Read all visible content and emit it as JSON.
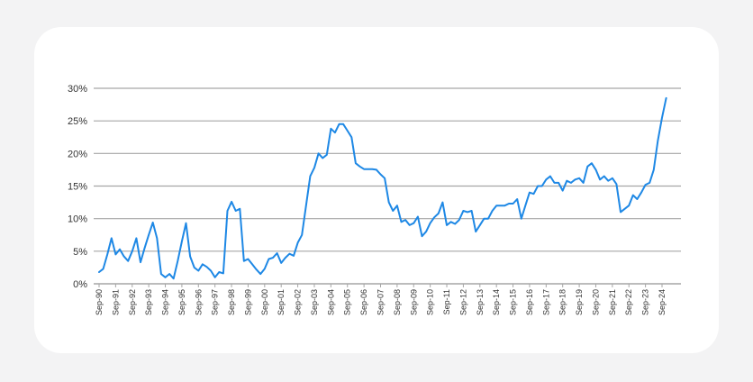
{
  "chart_data": {
    "type": "line",
    "title": "",
    "xlabel": "",
    "ylabel": "",
    "ylim": [
      0,
      30
    ],
    "y_ticks": [
      "0%",
      "5%",
      "10%",
      "15%",
      "20%",
      "25%",
      "30%"
    ],
    "x_ticks": [
      "Sep-90",
      "Sep-91",
      "Sep-92",
      "Sep-93",
      "Sep-94",
      "Sep-95",
      "Sep-96",
      "Sep-97",
      "Sep-98",
      "Sep-99",
      "Sep-00",
      "Sep-01",
      "Sep-02",
      "Sep-03",
      "Sep-04",
      "Sep-05",
      "Sep-06",
      "Sep-07",
      "Sep-08",
      "Sep-09",
      "Sep-10",
      "Sep-11",
      "Sep-12",
      "Sep-13",
      "Sep-14",
      "Sep-15",
      "Sep-16",
      "Sep-17",
      "Sep-18",
      "Sep-19",
      "Sep-20",
      "Sep-21",
      "Sep-22",
      "Sep-23",
      "Sep-24"
    ],
    "grid": true,
    "line_color": "#1e88e5",
    "grid_color": "#a6a6a6",
    "series": [
      {
        "points": [
          [
            1990.0,
            1.8
          ],
          [
            1990.25,
            2.3
          ],
          [
            1990.5,
            4.5
          ],
          [
            1990.75,
            7.0
          ],
          [
            1991.0,
            4.5
          ],
          [
            1991.25,
            5.3
          ],
          [
            1991.5,
            4.2
          ],
          [
            1991.75,
            3.5
          ],
          [
            1992.0,
            5.0
          ],
          [
            1992.25,
            7.0
          ],
          [
            1992.5,
            3.3
          ],
          [
            1992.75,
            5.5
          ],
          [
            1993.0,
            7.5
          ],
          [
            1993.25,
            9.4
          ],
          [
            1993.5,
            7.0
          ],
          [
            1993.75,
            1.5
          ],
          [
            1994.0,
            1.0
          ],
          [
            1994.25,
            1.5
          ],
          [
            1994.5,
            0.8
          ],
          [
            1994.75,
            3.5
          ],
          [
            1995.0,
            6.5
          ],
          [
            1995.25,
            9.3
          ],
          [
            1995.5,
            4.2
          ],
          [
            1995.75,
            2.5
          ],
          [
            1996.0,
            2.0
          ],
          [
            1996.25,
            3.0
          ],
          [
            1996.5,
            2.6
          ],
          [
            1996.75,
            2.0
          ],
          [
            1997.0,
            1.0
          ],
          [
            1997.25,
            1.8
          ],
          [
            1997.5,
            1.6
          ],
          [
            1997.75,
            11.2
          ],
          [
            1998.0,
            12.6
          ],
          [
            1998.25,
            11.2
          ],
          [
            1998.5,
            11.5
          ],
          [
            1998.75,
            3.5
          ],
          [
            1999.0,
            3.8
          ],
          [
            1999.25,
            3.0
          ],
          [
            1999.5,
            2.2
          ],
          [
            1999.75,
            1.5
          ],
          [
            2000.0,
            2.3
          ],
          [
            2000.25,
            3.8
          ],
          [
            2000.5,
            4.0
          ],
          [
            2000.75,
            4.7
          ],
          [
            2001.0,
            3.2
          ],
          [
            2001.25,
            4.0
          ],
          [
            2001.5,
            4.6
          ],
          [
            2001.75,
            4.3
          ],
          [
            2002.0,
            6.3
          ],
          [
            2002.25,
            7.5
          ],
          [
            2002.5,
            12.0
          ],
          [
            2002.75,
            16.5
          ],
          [
            2003.0,
            17.8
          ],
          [
            2003.25,
            20.0
          ],
          [
            2003.5,
            19.3
          ],
          [
            2003.75,
            19.8
          ],
          [
            2004.0,
            23.8
          ],
          [
            2004.25,
            23.2
          ],
          [
            2004.5,
            24.5
          ],
          [
            2004.75,
            24.5
          ],
          [
            2005.0,
            23.5
          ],
          [
            2005.25,
            22.5
          ],
          [
            2005.5,
            18.5
          ],
          [
            2005.75,
            18.0
          ],
          [
            2006.0,
            17.6
          ],
          [
            2006.25,
            17.6
          ],
          [
            2006.5,
            17.6
          ],
          [
            2006.75,
            17.5
          ],
          [
            2007.0,
            16.8
          ],
          [
            2007.25,
            16.2
          ],
          [
            2007.5,
            12.5
          ],
          [
            2007.75,
            11.2
          ],
          [
            2008.0,
            12.0
          ],
          [
            2008.25,
            9.5
          ],
          [
            2008.5,
            9.8
          ],
          [
            2008.75,
            9.0
          ],
          [
            2009.0,
            9.3
          ],
          [
            2009.25,
            10.3
          ],
          [
            2009.5,
            7.3
          ],
          [
            2009.75,
            8.0
          ],
          [
            2010.0,
            9.3
          ],
          [
            2010.25,
            10.2
          ],
          [
            2010.5,
            10.8
          ],
          [
            2010.75,
            12.5
          ],
          [
            2011.0,
            9.0
          ],
          [
            2011.25,
            9.5
          ],
          [
            2011.5,
            9.2
          ],
          [
            2011.75,
            9.8
          ],
          [
            2012.0,
            11.2
          ],
          [
            2012.25,
            11.0
          ],
          [
            2012.5,
            11.2
          ],
          [
            2012.75,
            8.0
          ],
          [
            2013.0,
            9.0
          ],
          [
            2013.25,
            10.0
          ],
          [
            2013.5,
            10.0
          ],
          [
            2013.75,
            11.2
          ],
          [
            2014.0,
            12.0
          ],
          [
            2014.25,
            12.0
          ],
          [
            2014.5,
            12.0
          ],
          [
            2014.75,
            12.3
          ],
          [
            2015.0,
            12.3
          ],
          [
            2015.25,
            13.0
          ],
          [
            2015.5,
            10.0
          ],
          [
            2015.75,
            12.0
          ],
          [
            2016.0,
            14.0
          ],
          [
            2016.25,
            13.8
          ],
          [
            2016.5,
            15.0
          ],
          [
            2016.75,
            15.0
          ],
          [
            2017.0,
            16.0
          ],
          [
            2017.25,
            16.5
          ],
          [
            2017.5,
            15.5
          ],
          [
            2017.75,
            15.5
          ],
          [
            2018.0,
            14.3
          ],
          [
            2018.25,
            15.8
          ],
          [
            2018.5,
            15.5
          ],
          [
            2018.75,
            16.0
          ],
          [
            2019.0,
            16.2
          ],
          [
            2019.25,
            15.5
          ],
          [
            2019.5,
            18.0
          ],
          [
            2019.75,
            18.5
          ],
          [
            2020.0,
            17.5
          ],
          [
            2020.25,
            16.0
          ],
          [
            2020.5,
            16.5
          ],
          [
            2020.75,
            15.8
          ],
          [
            2021.0,
            16.2
          ],
          [
            2021.25,
            15.3
          ],
          [
            2021.5,
            11.0
          ],
          [
            2021.75,
            11.5
          ],
          [
            2022.0,
            12.0
          ],
          [
            2022.25,
            13.6
          ],
          [
            2022.5,
            13.0
          ],
          [
            2022.75,
            14.0
          ],
          [
            2023.0,
            15.2
          ],
          [
            2023.25,
            15.5
          ],
          [
            2023.5,
            17.5
          ],
          [
            2023.75,
            22.0
          ],
          [
            2024.0,
            25.5
          ],
          [
            2024.25,
            28.5
          ]
        ]
      }
    ]
  }
}
